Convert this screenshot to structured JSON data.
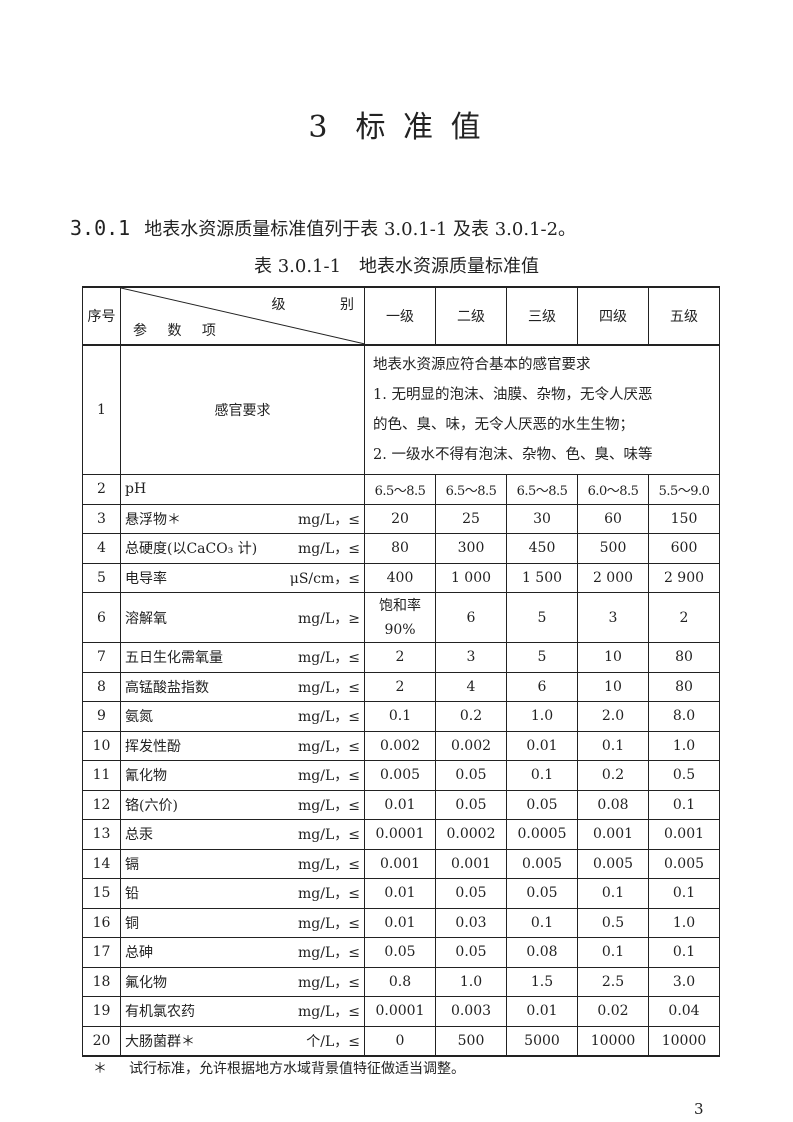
{
  "chapter": {
    "number": "3",
    "title": "标 准 值"
  },
  "clause": {
    "number": "3.0.1",
    "text": "地表水资源质量标准值列于表 3.0.1-1 及表 3.0.1-2。"
  },
  "table_title": "表 3.0.1-1　地表水资源质量标准值",
  "table": {
    "header": {
      "seq": "序号",
      "diag_top": "级 别",
      "diag_bottom": "参 数 项",
      "grades": [
        "一级",
        "二级",
        "三级",
        "四级",
        "五级"
      ]
    },
    "row1": {
      "seq": "1",
      "param": "感官要求",
      "desc": [
        "地表水资源应符合基本的感官要求",
        "1. 无明显的泡沫、油膜、杂物，无令人厌恶",
        "的色、臭、味，无令人厌恶的水生生物；",
        "2. 一级水不得有泡沫、杂物、色、臭、味等"
      ]
    },
    "rows": [
      {
        "seq": "2",
        "param": "pH",
        "unit": "",
        "values": [
          "6.5～8.5",
          "6.5～8.5",
          "6.5～8.5",
          "6.0～8.5",
          "5.5～9.0"
        ]
      },
      {
        "seq": "3",
        "param": "悬浮物＊",
        "unit": "mg/L，≤",
        "values": [
          "20",
          "25",
          "30",
          "60",
          "150"
        ]
      },
      {
        "seq": "4",
        "param": "总硬度(以CaCO₃ 计)",
        "unit": "mg/L，≤",
        "values": [
          "80",
          "300",
          "450",
          "500",
          "600"
        ]
      },
      {
        "seq": "5",
        "param": "电导率",
        "unit": "μS/cm，≤",
        "values": [
          "400",
          "1 000",
          "1 500",
          "2 000",
          "2 900"
        ]
      },
      {
        "seq": "6",
        "param": "溶解氧",
        "unit": "mg/L，≥",
        "values": [
          "饱和率 90%",
          "6",
          "5",
          "3",
          "2"
        ]
      },
      {
        "seq": "7",
        "param": "五日生化需氧量",
        "unit": "mg/L，≤",
        "values": [
          "2",
          "3",
          "5",
          "10",
          "80"
        ]
      },
      {
        "seq": "8",
        "param": "高锰酸盐指数",
        "unit": "mg/L，≤",
        "values": [
          "2",
          "4",
          "6",
          "10",
          "80"
        ]
      },
      {
        "seq": "9",
        "param": "氨氮",
        "unit": "mg/L，≤",
        "values": [
          "0.1",
          "0.2",
          "1.0",
          "2.0",
          "8.0"
        ]
      },
      {
        "seq": "10",
        "param": "挥发性酚",
        "unit": "mg/L，≤",
        "values": [
          "0.002",
          "0.002",
          "0.01",
          "0.1",
          "1.0"
        ]
      },
      {
        "seq": "11",
        "param": "氰化物",
        "unit": "mg/L，≤",
        "values": [
          "0.005",
          "0.05",
          "0.1",
          "0.2",
          "0.5"
        ]
      },
      {
        "seq": "12",
        "param": "铬(六价)",
        "unit": "mg/L，≤",
        "values": [
          "0.01",
          "0.05",
          "0.05",
          "0.08",
          "0.1"
        ]
      },
      {
        "seq": "13",
        "param": "总汞",
        "unit": "mg/L，≤",
        "values": [
          "0.0001",
          "0.0002",
          "0.0005",
          "0.001",
          "0.001"
        ]
      },
      {
        "seq": "14",
        "param": "镉",
        "unit": "mg/L，≤",
        "values": [
          "0.001",
          "0.001",
          "0.005",
          "0.005",
          "0.005"
        ]
      },
      {
        "seq": "15",
        "param": "铅",
        "unit": "mg/L，≤",
        "values": [
          "0.01",
          "0.05",
          "0.05",
          "0.1",
          "0.1"
        ]
      },
      {
        "seq": "16",
        "param": "铜",
        "unit": "mg/L，≤",
        "values": [
          "0.01",
          "0.03",
          "0.1",
          "0.5",
          "1.0"
        ]
      },
      {
        "seq": "17",
        "param": "总砷",
        "unit": "mg/L，≤",
        "values": [
          "0.05",
          "0.05",
          "0.08",
          "0.1",
          "0.1"
        ]
      },
      {
        "seq": "18",
        "param": "氟化物",
        "unit": "mg/L，≤",
        "values": [
          "0.8",
          "1.0",
          "1.5",
          "2.5",
          "3.0"
        ]
      },
      {
        "seq": "19",
        "param": "有机氯农药",
        "unit": "mg/L，≤",
        "values": [
          "0.0001",
          "0.003",
          "0.01",
          "0.02",
          "0.04"
        ]
      },
      {
        "seq": "20",
        "param": "大肠菌群＊",
        "unit": "个/L，≤",
        "values": [
          "0",
          "500",
          "5000",
          "10000",
          "10000"
        ]
      }
    ]
  },
  "footnote": {
    "mark": "＊",
    "text": "试行标准，允许根据地方水域背景值特征做适当调整。"
  },
  "page_number": "3"
}
